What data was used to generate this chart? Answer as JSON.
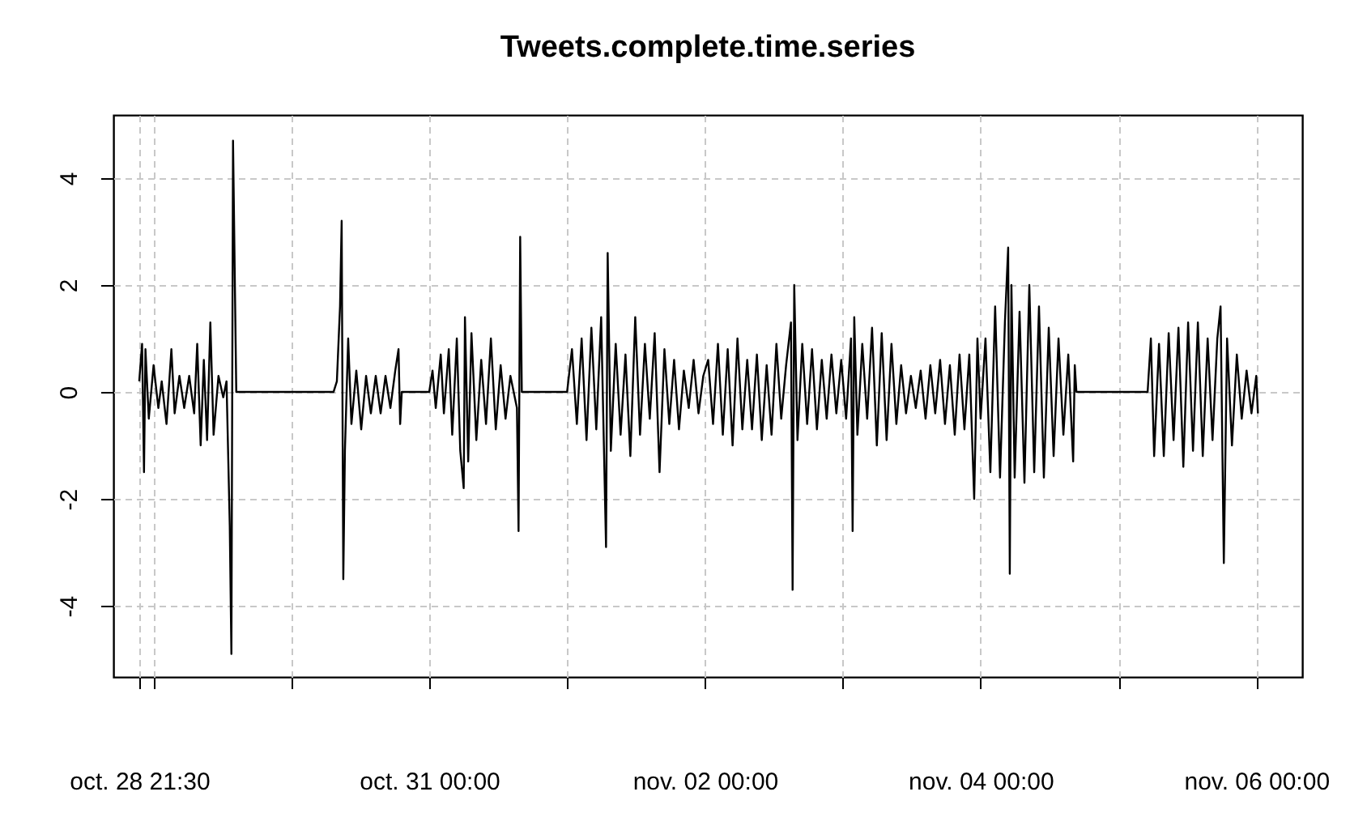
{
  "chart_data": {
    "type": "line",
    "title": "Tweets.complete.time.series",
    "line_style": "solid",
    "marker": "none",
    "grid": true,
    "xlim": [
      "--10-28T17:00",
      "--11-06T08:00"
    ],
    "ylim": [
      -5.33,
      5.18
    ],
    "yticks": [
      -4,
      -2,
      0,
      2,
      4
    ],
    "xticks": [
      {
        "value": "--10-28T21:30",
        "label": "oct. 28 21:30"
      },
      {
        "value": "--10-29T00:00",
        "label": null
      },
      {
        "value": "--10-30T00:00",
        "label": null
      },
      {
        "value": "--10-31T00:00",
        "label": "oct. 31 00:00"
      },
      {
        "value": "--11-01T00:00",
        "label": null
      },
      {
        "value": "--11-02T00:00",
        "label": "nov. 02 00:00"
      },
      {
        "value": "--11-03T00:00",
        "label": null
      },
      {
        "value": "--11-04T00:00",
        "label": "nov. 04 00:00"
      },
      {
        "value": "--11-05T00:00",
        "label": null
      },
      {
        "value": "--11-06T00:00",
        "label": "nov. 06 00:00"
      }
    ],
    "series": [
      {
        "color": "#000000",
        "x": [
          "--10-28T21:30",
          "--10-28T22:00",
          "--10-28T22:20",
          "--10-28T22:35",
          "--10-28T23:10",
          "--10-29T00:00",
          "--10-29T00:50",
          "--10-29T01:25",
          "--10-29T02:15",
          "--10-29T03:06",
          "--10-29T03:40",
          "--10-29T04:30",
          "--10-29T05:20",
          "--10-29T06:12",
          "--10-29T07:04",
          "--10-29T07:36",
          "--10-29T08:12",
          "--10-29T08:45",
          "--10-29T09:19",
          "--10-29T09:53",
          "--10-29T10:27",
          "--10-29T11:18",
          "--10-29T12:08",
          "--10-29T12:42",
          "--10-29T13:16",
          "--10-29T13:33",
          "--10-29T13:50",
          "--10-29T14:24",
          "--10-30T07:20",
          "--10-30T07:55",
          "--10-30T08:28",
          "--10-30T08:45",
          "--10-30T09:02",
          "--10-30T09:19",
          "--10-30T09:53",
          "--10-30T10:27",
          "--10-30T11:18",
          "--10-30T12:09",
          "--10-30T13:00",
          "--10-30T13:50",
          "--10-30T14:41",
          "--10-30T15:32",
          "--10-30T16:23",
          "--10-30T17:14",
          "--10-30T18:05",
          "--10-30T18:39",
          "--10-30T18:56",
          "--10-30T19:13",
          "--10-31T00:00",
          "--10-31T00:34",
          "--10-31T01:08",
          "--10-31T02:00",
          "--10-31T02:33",
          "--10-31T03:24",
          "--10-31T04:00",
          "--10-31T04:48",
          "--10-31T05:24",
          "--10-31T06:00",
          "--10-31T06:13",
          "--10-31T06:47",
          "--10-31T07:21",
          "--10-31T08:12",
          "--10-31T09:03",
          "--10-31T09:53",
          "--10-31T10:44",
          "--10-31T11:35",
          "--10-31T12:26",
          "--10-31T13:17",
          "--10-31T14:08",
          "--10-31T15:16",
          "--10-31T15:33",
          "--10-31T15:50",
          "--10-31T16:07",
          "--11-01T00:00",
          "--11-01T00:51",
          "--11-01T01:42",
          "--11-01T02:32",
          "--11-01T03:23",
          "--11-01T04:14",
          "--11-01T05:05",
          "--11-01T05:56",
          "--11-01T06:47",
          "--11-01T07:04",
          "--11-01T07:37",
          "--11-01T08:28",
          "--11-01T09:19",
          "--11-01T10:10",
          "--11-01T11:01",
          "--11-01T11:52",
          "--11-01T12:42",
          "--11-01T13:33",
          "--11-01T14:24",
          "--11-01T15:15",
          "--11-01T16:06",
          "--11-01T16:57",
          "--11-01T17:48",
          "--11-01T18:38",
          "--11-01T19:29",
          "--11-01T20:20",
          "--11-01T21:11",
          "--11-01T22:02",
          "--11-01T22:53",
          "--11-01T23:43",
          "--11-02T00:34",
          "--11-02T01:25",
          "--11-02T02:16",
          "--11-02T03:07",
          "--11-02T03:58",
          "--11-02T04:49",
          "--11-02T05:40",
          "--11-02T06:31",
          "--11-02T07:22",
          "--11-02T08:12",
          "--11-02T09:03",
          "--11-02T09:54",
          "--11-02T10:45",
          "--11-02T11:36",
          "--11-02T12:27",
          "--11-02T13:17",
          "--11-02T14:08",
          "--11-02T14:59",
          "--11-02T15:16",
          "--11-02T15:33",
          "--11-02T16:07",
          "--11-02T16:57",
          "--11-02T17:48",
          "--11-02T18:39",
          "--11-02T19:30",
          "--11-02T20:21",
          "--11-02T21:12",
          "--11-02T22:02",
          "--11-02T22:53",
          "--11-02T23:44",
          "--11-03T00:35",
          "--11-03T01:26",
          "--11-03T01:43",
          "--11-03T02:00",
          "--11-03T02:33",
          "--11-03T03:24",
          "--11-03T04:15",
          "--11-03T05:06",
          "--11-03T05:56",
          "--11-03T06:47",
          "--11-03T07:38",
          "--11-03T08:29",
          "--11-03T09:20",
          "--11-03T10:10",
          "--11-03T11:01",
          "--11-03T11:52",
          "--11-03T12:43",
          "--11-03T13:34",
          "--11-03T14:25",
          "--11-03T15:15",
          "--11-03T16:06",
          "--11-03T16:57",
          "--11-03T17:48",
          "--11-03T18:39",
          "--11-03T19:30",
          "--11-03T20:20",
          "--11-03T21:11",
          "--11-03T22:02",
          "--11-03T22:53",
          "--11-03T23:27",
          "--11-04T00:00",
          "--11-04T00:51",
          "--11-04T01:42",
          "--11-04T02:32",
          "--11-04T03:23",
          "--11-04T04:14",
          "--11-04T04:48",
          "--11-04T05:05",
          "--11-04T05:22",
          "--11-04T05:56",
          "--11-04T06:47",
          "--11-04T07:38",
          "--11-04T08:29",
          "--11-04T09:20",
          "--11-04T10:10",
          "--11-04T11:01",
          "--11-04T11:52",
          "--11-04T12:43",
          "--11-04T13:34",
          "--11-04T14:25",
          "--11-04T15:16",
          "--11-04T16:07",
          "--11-04T16:24",
          "--11-04T16:41",
          "--11-05T05:05",
          "--11-05T05:39",
          "--11-05T06:13",
          "--11-05T07:04",
          "--11-05T07:54",
          "--11-05T08:45",
          "--11-05T09:36",
          "--11-05T10:27",
          "--11-05T11:18",
          "--11-05T12:08",
          "--11-05T12:59",
          "--11-05T13:50",
          "--11-05T14:41",
          "--11-05T15:32",
          "--11-05T16:23",
          "--11-05T17:13",
          "--11-05T17:47",
          "--11-05T18:21",
          "--11-05T18:55",
          "--11-05T19:46",
          "--11-05T20:37",
          "--11-05T21:28",
          "--11-05T22:19",
          "--11-05T23:10",
          "--11-06T00:00",
          "--11-06T00:17"
        ],
        "values": [
          0.2,
          0.9,
          -1.5,
          0.8,
          -0.5,
          0.5,
          -0.3,
          0.2,
          -0.6,
          0.8,
          -0.4,
          0.3,
          -0.3,
          0.3,
          -0.4,
          0.9,
          -1.0,
          0.6,
          -0.9,
          1.3,
          -0.8,
          0.3,
          -0.1,
          0.2,
          -2.5,
          -4.9,
          4.7,
          0,
          0,
          0.2,
          1.6,
          3.2,
          -3.5,
          -1.1,
          1.0,
          -0.6,
          0.4,
          -0.7,
          0.3,
          -0.4,
          0.3,
          -0.4,
          0.3,
          -0.3,
          0.4,
          0.8,
          -0.6,
          0,
          0,
          0.4,
          -0.3,
          0.7,
          -0.4,
          0.8,
          -0.8,
          1.0,
          -1.1,
          -1.8,
          1.4,
          -1.3,
          1.1,
          -0.9,
          0.6,
          -0.6,
          1.0,
          -0.7,
          0.5,
          -0.5,
          0.3,
          -0.3,
          -2.6,
          2.9,
          0,
          0,
          0.8,
          -0.6,
          1.0,
          -0.9,
          1.2,
          -0.7,
          1.4,
          -2.9,
          2.6,
          -1.1,
          0.9,
          -0.8,
          0.7,
          -1.2,
          1.4,
          -0.8,
          0.9,
          -0.5,
          1.1,
          -1.5,
          0.8,
          -0.6,
          0.6,
          -0.7,
          0.4,
          -0.3,
          0.6,
          -0.4,
          0.3,
          0.6,
          -0.6,
          0.9,
          -0.8,
          0.8,
          -1.0,
          1.0,
          -0.7,
          0.6,
          -0.7,
          0.7,
          -0.9,
          0.5,
          -0.8,
          0.9,
          -0.5,
          0.5,
          1.3,
          -3.7,
          2.0,
          -0.9,
          0.9,
          -0.6,
          0.8,
          -0.7,
          0.6,
          -0.5,
          0.7,
          -0.4,
          0.6,
          -0.5,
          1.0,
          -2.6,
          1.4,
          -0.8,
          0.9,
          -0.5,
          1.2,
          -1.0,
          1.1,
          -0.9,
          0.9,
          -0.6,
          0.5,
          -0.4,
          0.3,
          -0.3,
          0.4,
          -0.5,
          0.5,
          -0.4,
          0.6,
          -0.6,
          0.5,
          -0.8,
          0.7,
          -0.7,
          0.7,
          -2.0,
          1.0,
          -0.5,
          1.0,
          -1.5,
          1.6,
          -1.6,
          1.3,
          2.7,
          -3.4,
          2.0,
          -1.6,
          1.5,
          -1.7,
          2.0,
          -1.5,
          1.6,
          -1.6,
          1.2,
          -1.2,
          1.0,
          -0.8,
          0.7,
          -1.3,
          0.5,
          0,
          0,
          1.0,
          -1.2,
          0.9,
          -1.2,
          1.1,
          -0.9,
          1.2,
          -1.4,
          1.3,
          -1.1,
          1.3,
          -1.2,
          1.0,
          -0.9,
          1.0,
          1.6,
          -3.2,
          1.0,
          -1.0,
          0.7,
          -0.5,
          0.4,
          -0.4,
          0.3,
          -0.4
        ]
      }
    ]
  }
}
